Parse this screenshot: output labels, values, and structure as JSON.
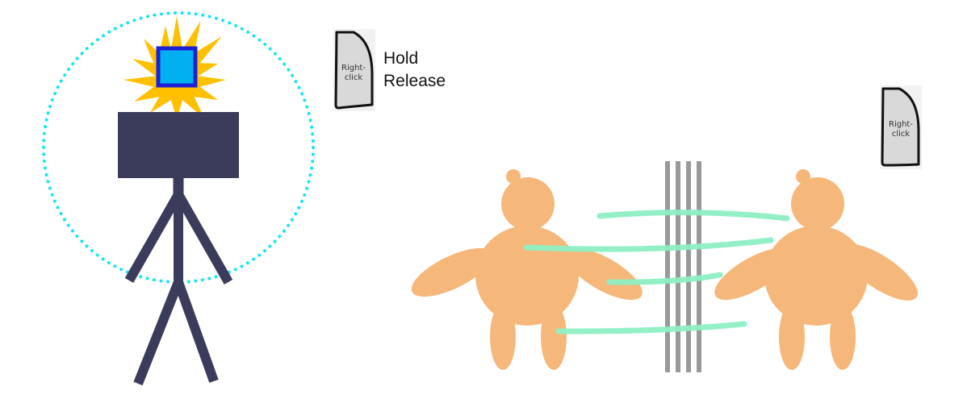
{
  "instructions": {
    "hold_label": "Hold",
    "release_label": "Release"
  },
  "mouse_button_left": {
    "label_line1": "Right-",
    "label_line2": "click"
  },
  "mouse_button_right": {
    "label_line1": "Right-",
    "label_line2": "click"
  },
  "colors": {
    "stick_figure": "#3b3b5c",
    "aura_ring": "#19e6f0",
    "burst": "#ffc000",
    "crystal_fill": "#00b0f0",
    "crystal_border": "#1f1fd6",
    "creature": "#f6b77a",
    "pole": "#999999",
    "energy_streak": "#8ef0c4",
    "mouse_fill": "#d9d9d9",
    "mouse_outline": "#111111"
  }
}
